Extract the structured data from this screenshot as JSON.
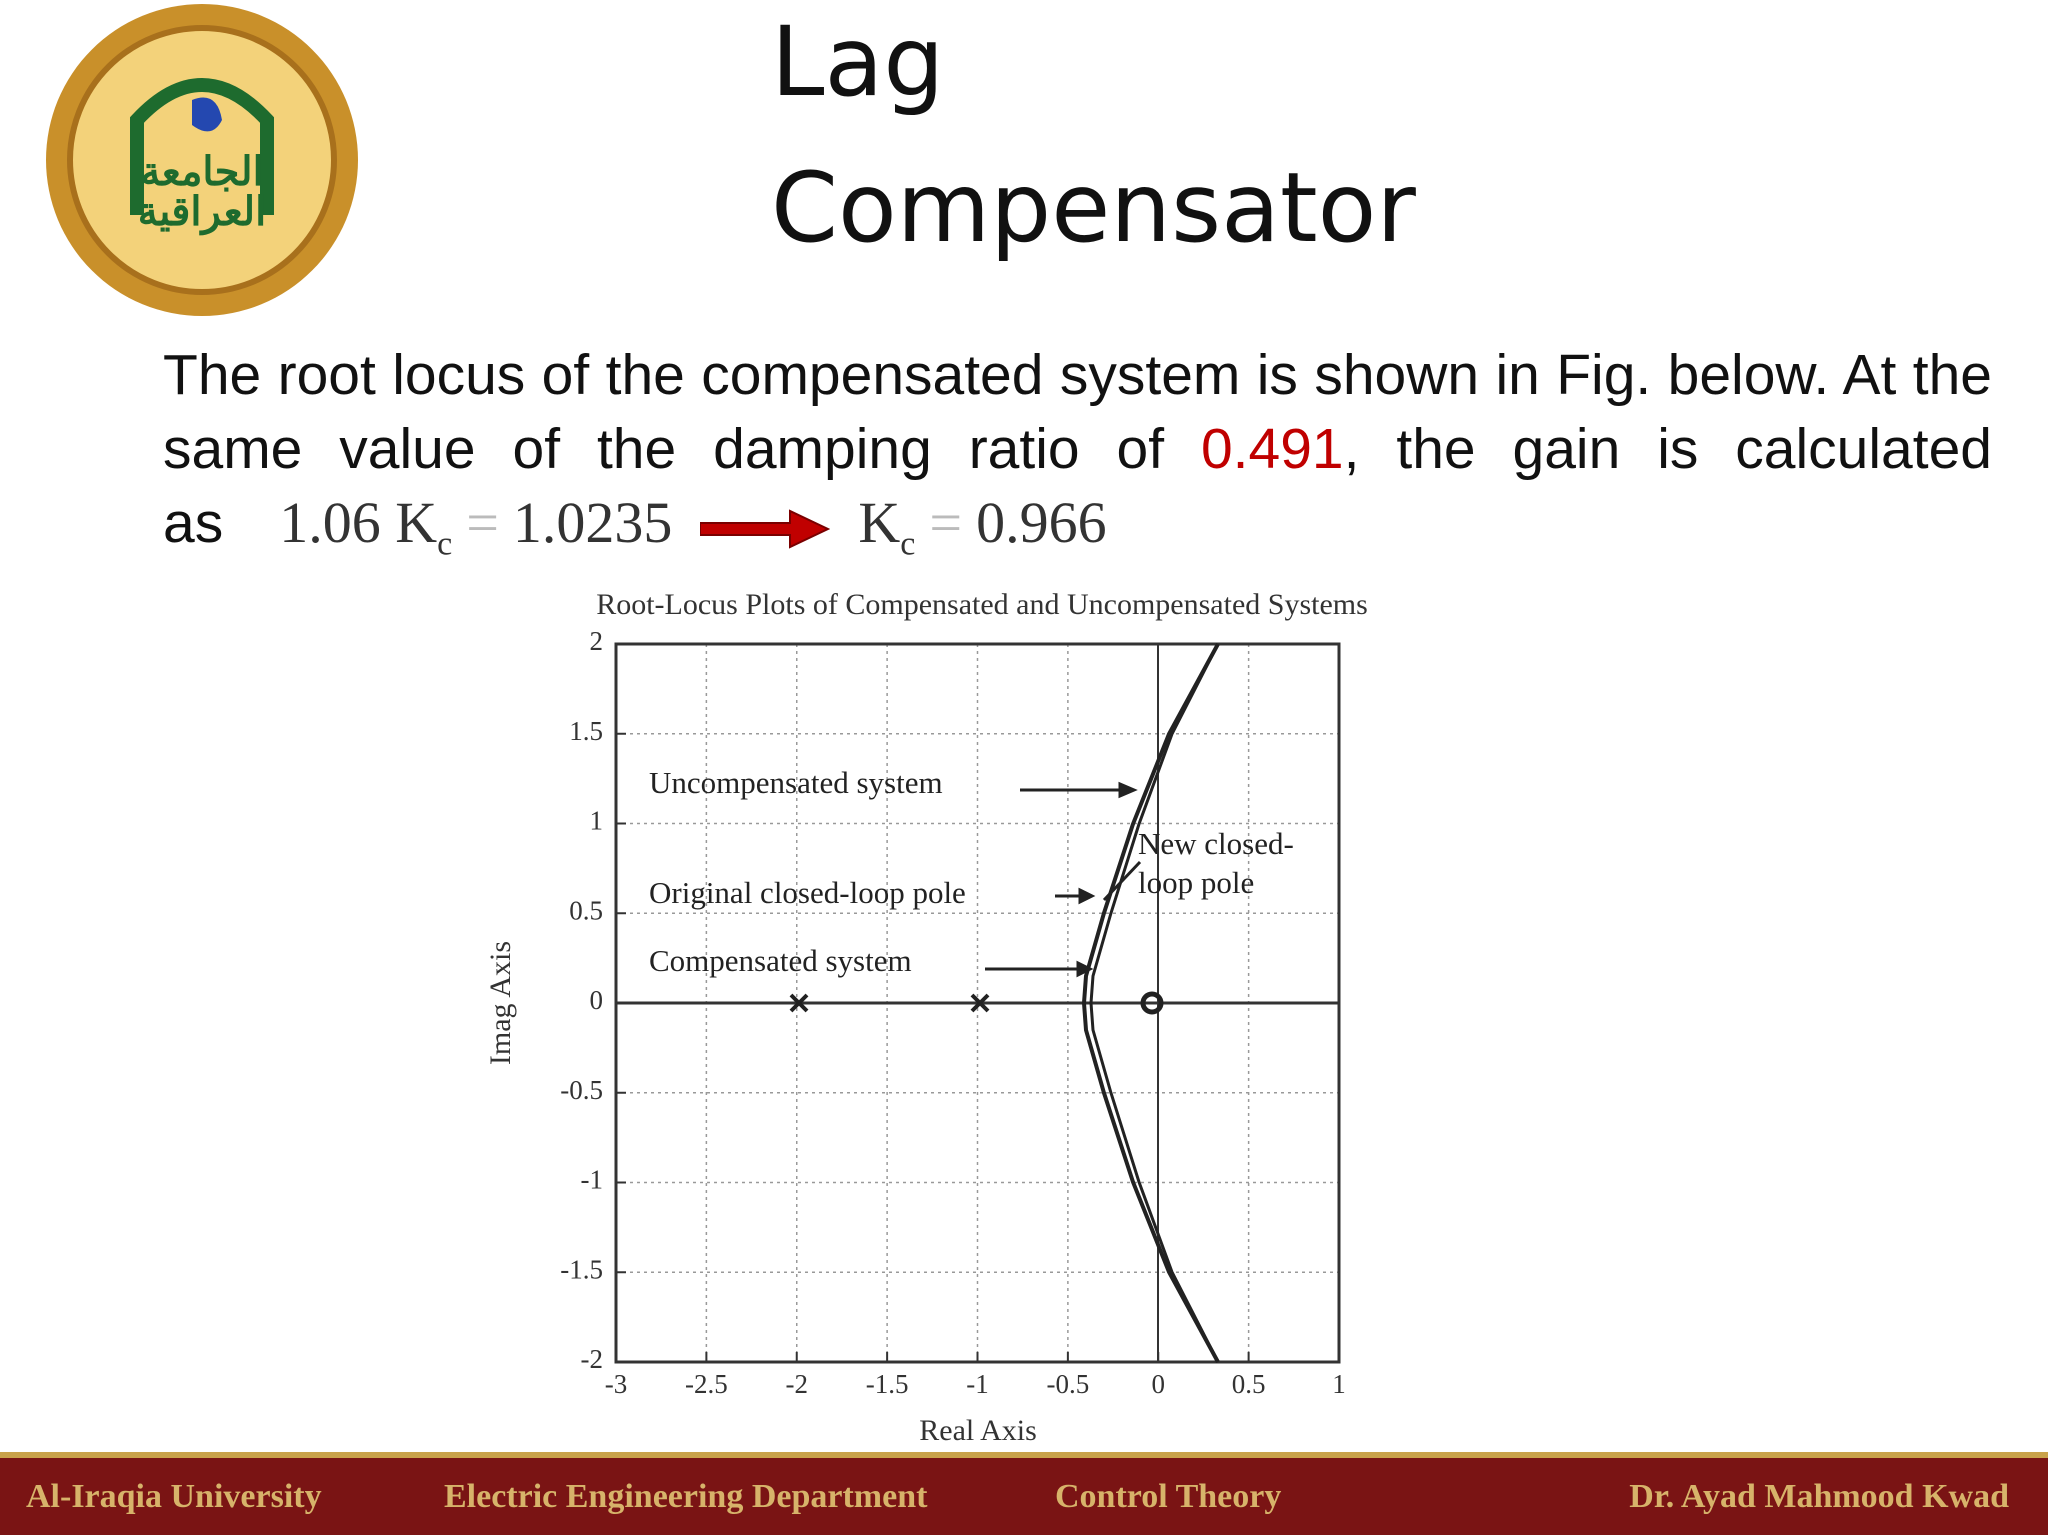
{
  "logo": {
    "line1": "الجامعة",
    "line2": "العراقية"
  },
  "header": {
    "title_line1": "Lag",
    "title_line2": "Compensator"
  },
  "body": {
    "text_before": "The root locus of the compensated system is shown in Fig. below. At the same value of the damping ratio of ",
    "highlight": "0.491",
    "text_after": ", the gain is calculated as"
  },
  "equation": {
    "lhs": "1.06 K",
    "lhs_sub": "c",
    "op1": "=",
    "result1": "1.0235",
    "k": "K",
    "k_sub": "c",
    "op2": "=",
    "result2": "0.966"
  },
  "figure": {
    "title": "Root-Locus Plots of Compensated and Uncompensated Systems",
    "xlabel": "Real Axis",
    "ylabel": "Imag Axis",
    "xlim": [
      -3,
      1
    ],
    "ylim": [
      -2,
      2
    ],
    "xticks": [
      -3,
      -2.5,
      -2,
      -1.5,
      -1,
      -0.5,
      0,
      0.5,
      1
    ],
    "yticks": [
      -2,
      -1.5,
      -1,
      -0.5,
      0,
      0.5,
      1,
      1.5,
      2
    ],
    "grid": true,
    "annotations": [
      "Uncompensated system",
      "Original closed-loop pole",
      "Compensated system",
      "New closed-",
      "loop pole"
    ]
  },
  "footer": [
    "Al-Iraqia University",
    "Electric Engineering Department",
    "Control Theory",
    "Dr. Ayad Mahmood Kwad"
  ]
}
